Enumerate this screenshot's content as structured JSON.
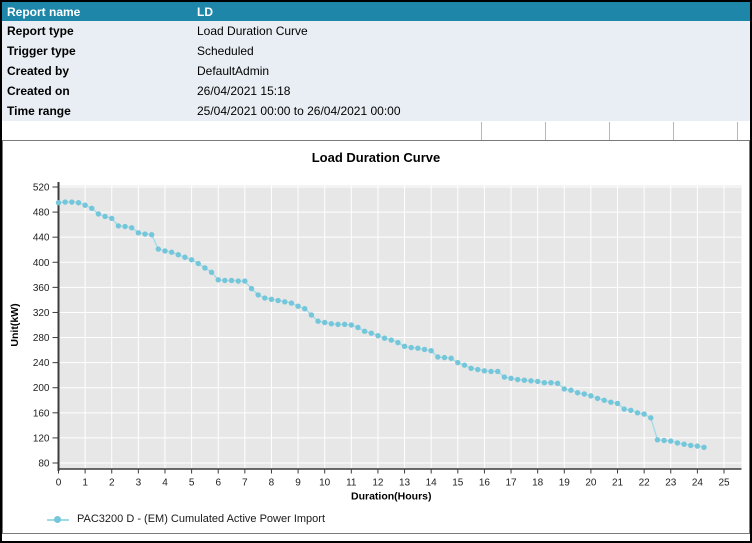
{
  "report_table": {
    "header": {
      "label": "Report name",
      "value": "LD"
    },
    "rows": [
      {
        "label": "Report type",
        "value": "Load Duration Curve"
      },
      {
        "label": "Trigger type",
        "value": "Scheduled"
      },
      {
        "label": "Created by",
        "value": "DefaultAdmin"
      },
      {
        "label": "Created on",
        "value": "26/04/2021 15:18"
      },
      {
        "label": "Time range",
        "value": "25/04/2021 00:00 to 26/04/2021 00:00"
      }
    ]
  },
  "chart_data": {
    "type": "line",
    "title": "Load Duration Curve",
    "xlabel": "Duration(Hours)",
    "ylabel": "Unit(kW)",
    "xlim": [
      0,
      25
    ],
    "ylim": [
      80,
      520
    ],
    "x_ticks": [
      0,
      1,
      2,
      3,
      4,
      5,
      6,
      7,
      8,
      9,
      10,
      11,
      12,
      13,
      14,
      15,
      16,
      17,
      18,
      19,
      20,
      21,
      22,
      23,
      24,
      25
    ],
    "y_ticks": [
      80,
      120,
      160,
      200,
      240,
      280,
      320,
      360,
      400,
      440,
      480,
      520
    ],
    "grid": true,
    "plot_background": "#e7e7e7",
    "legend_position": "bottom-left",
    "series": [
      {
        "name": "PAC3200 D - (EM) Cumulated Active Power Import",
        "marker": "circle",
        "x_start": 0,
        "x_step": 0.25,
        "values": [
          495,
          496,
          496,
          495,
          491,
          486,
          477,
          473,
          470,
          458,
          457,
          455,
          447,
          445,
          444,
          421,
          418,
          416,
          412,
          408,
          404,
          398,
          391,
          384,
          372,
          371,
          371,
          370,
          370,
          358,
          348,
          343,
          341,
          339,
          337,
          335,
          330,
          326,
          316,
          306,
          304,
          302,
          301,
          301,
          300,
          296,
          290,
          287,
          283,
          279,
          276,
          272,
          266,
          264,
          263,
          261,
          259,
          249,
          248,
          247,
          240,
          236,
          231,
          229,
          227,
          226,
          226,
          217,
          215,
          213,
          212,
          211,
          210,
          208,
          208,
          207,
          198,
          196,
          192,
          190,
          187,
          183,
          180,
          177,
          175,
          166,
          164,
          160,
          158,
          152,
          117,
          116,
          115,
          112,
          110,
          108,
          107,
          105
        ]
      }
    ]
  },
  "colors": {
    "header_bg": "#1e86a8",
    "header_text": "#ffffff",
    "row_bg": "#e9eef4",
    "panel_border": "#7a7a7a",
    "plot_bg": "#e7e7e7",
    "grid_line": "#ffffff",
    "axis": "#3c3c3c",
    "tick_text": "#222222",
    "series": "#74c6da",
    "series_line": "#9edbe7",
    "empty_grid_line": "#b3b9c0",
    "outer_border": "#000000"
  }
}
